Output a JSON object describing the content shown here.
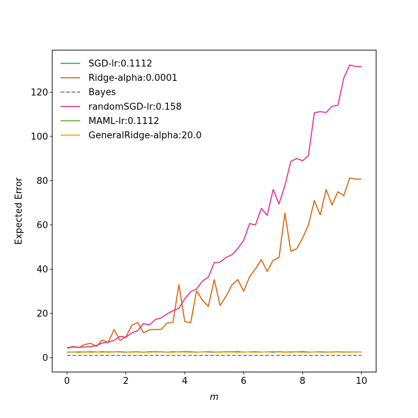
{
  "chart_data": {
    "type": "line",
    "title": "",
    "xlabel": "m",
    "ylabel": "Expected Error",
    "xlim": [
      -0.5,
      10.5
    ],
    "ylim": [
      -6.5,
      139
    ],
    "xticks": [
      0,
      2,
      4,
      6,
      8,
      10
    ],
    "yticks": [
      0,
      20,
      40,
      60,
      80,
      100,
      120
    ],
    "grid": false,
    "legend_position": "top-left",
    "x": [
      0.0,
      0.2,
      0.4,
      0.6,
      0.8,
      1.0,
      1.2,
      1.4,
      1.6,
      1.8,
      2.0,
      2.2,
      2.4,
      2.6,
      2.8,
      3.0,
      3.2,
      3.4,
      3.6,
      3.8,
      4.0,
      4.2,
      4.4,
      4.6,
      4.8,
      5.0,
      5.2,
      5.4,
      5.6,
      5.8,
      6.0,
      6.2,
      6.4,
      6.6,
      6.8,
      7.0,
      7.2,
      7.4,
      7.6,
      7.8,
      8.0,
      8.2,
      8.4,
      8.6,
      8.8,
      9.0,
      9.2,
      9.4,
      9.6,
      9.8,
      10.0
    ],
    "series": [
      {
        "name": "SGD-lr:0.1112",
        "color": "#1b9e77",
        "dash": "solid",
        "values": [
          2.4,
          2.5,
          2.3,
          2.6,
          2.4,
          2.5,
          2.7,
          2.4,
          2.6,
          2.5,
          2.4,
          2.6,
          2.5,
          2.4,
          2.7,
          2.5,
          2.6,
          2.4,
          2.5,
          2.6,
          2.7,
          2.5,
          2.4,
          2.6,
          2.5,
          2.4,
          2.6,
          2.5,
          2.7,
          2.4,
          2.5,
          2.6,
          2.4,
          2.5,
          2.6,
          2.4,
          2.7,
          2.5,
          2.4,
          2.6,
          2.5,
          2.4,
          2.6,
          2.5,
          2.4,
          2.6,
          2.5,
          2.4,
          2.6,
          2.5,
          2.5
        ]
      },
      {
        "name": "Ridge-alpha:0.0001",
        "color": "#d95f02",
        "dash": "solid",
        "values": [
          4.3,
          4.8,
          4.6,
          5.9,
          6.5,
          5.1,
          8.0,
          6.9,
          12.7,
          7.8,
          9.4,
          14.6,
          15.9,
          11.2,
          12.6,
          12.7,
          12.8,
          15.6,
          16.0,
          33.0,
          16.3,
          15.8,
          30.2,
          26.0,
          23.2,
          35.3,
          23.6,
          27.7,
          32.8,
          35.3,
          30.0,
          36.6,
          40.1,
          44.3,
          39.0,
          44.0,
          45.2,
          65.4,
          48.1,
          49.2,
          54.1,
          60.0,
          71.0,
          64.5,
          76.0,
          69.0,
          75.0,
          73.2,
          81.2,
          80.7,
          80.7
        ]
      },
      {
        "name": "Bayes",
        "color": "#7570b3",
        "dash": "dashed",
        "values": [
          1.0,
          1.0,
          1.0,
          1.0,
          1.0,
          1.0,
          1.0,
          1.0,
          1.0,
          1.0,
          1.0,
          1.0,
          1.0,
          1.0,
          1.0,
          1.0,
          1.0,
          1.0,
          1.0,
          1.0,
          1.0,
          1.0,
          1.0,
          1.0,
          1.0,
          1.0,
          1.0,
          1.0,
          1.0,
          1.0,
          1.0,
          1.0,
          1.0,
          1.0,
          1.0,
          1.0,
          1.0,
          1.0,
          1.0,
          1.0,
          1.0,
          1.0,
          1.0,
          1.0,
          1.0,
          1.0,
          1.0,
          1.0,
          1.0,
          1.0,
          1.0
        ]
      },
      {
        "name": "randomSGD-lr:0.158",
        "color": "#e7298a",
        "dash": "solid",
        "values": [
          4.4,
          5.0,
          4.7,
          4.8,
          5.0,
          5.5,
          6.6,
          7.0,
          7.8,
          9.6,
          9.2,
          11.2,
          12.2,
          15.4,
          14.8,
          17.2,
          18.0,
          19.8,
          21.2,
          22.3,
          26.6,
          29.8,
          31.0,
          34.6,
          36.4,
          42.9,
          43.2,
          45.3,
          46.5,
          49.3,
          53.0,
          60.6,
          60.0,
          67.5,
          64.3,
          76.0,
          69.5,
          77.8,
          88.7,
          90.0,
          89.0,
          91.4,
          110.7,
          111.2,
          110.8,
          113.6,
          114.1,
          126.4,
          132.3,
          131.6,
          131.6
        ]
      },
      {
        "name": "MAML-lr:0.1112",
        "color": "#66a61e",
        "dash": "solid",
        "values": [
          2.6,
          2.5,
          2.7,
          2.5,
          2.8,
          2.6,
          2.5,
          2.7,
          2.6,
          2.8,
          2.5,
          2.6,
          2.7,
          2.5,
          2.6,
          2.8,
          2.6,
          2.5,
          2.7,
          2.6,
          2.8,
          2.7,
          2.5,
          2.6,
          2.8,
          2.6,
          2.5,
          2.7,
          2.6,
          2.8,
          2.5,
          2.6,
          2.7,
          2.5,
          2.6,
          2.8,
          2.6,
          2.5,
          2.7,
          2.6,
          2.8,
          2.6,
          2.5,
          2.7,
          2.6,
          2.5,
          2.7,
          2.6,
          2.5,
          2.6,
          2.6
        ]
      },
      {
        "name": "GeneralRidge-alpha:20.0",
        "color": "#e6ab02",
        "dash": "solid",
        "values": [
          2.5,
          2.6,
          2.5,
          2.4,
          2.6,
          2.5,
          2.4,
          2.6,
          2.5,
          2.7,
          2.5,
          2.4,
          2.6,
          2.5,
          2.4,
          2.6,
          2.7,
          2.5,
          2.4,
          2.6,
          2.5,
          2.4,
          2.6,
          2.5,
          2.7,
          2.5,
          2.4,
          2.6,
          2.5,
          2.4,
          2.6,
          2.5,
          2.4,
          2.6,
          2.5,
          2.7,
          2.5,
          2.4,
          2.6,
          2.5,
          2.4,
          2.6,
          2.5,
          2.7,
          2.5,
          2.4,
          2.6,
          2.5,
          2.4,
          2.6,
          2.5
        ]
      }
    ]
  }
}
